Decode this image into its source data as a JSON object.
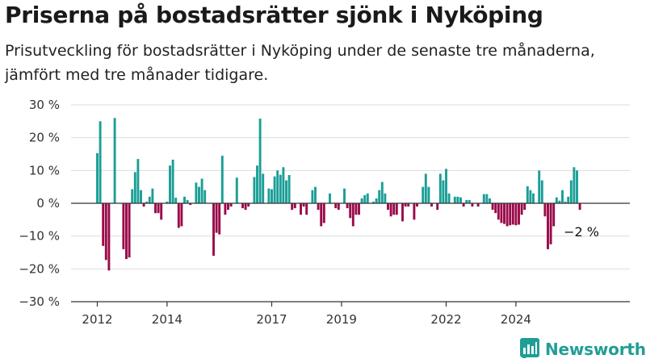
{
  "title": "Priserna på bostadsrätter sjönk i Nyköping",
  "subtitle": "Prisutveckling för bostadsrätter i Nyköping under de senaste tre månaderna, jämfört med tre månader tidigare.",
  "brand": {
    "name": "Newsworthy",
    "icon": "newsworthy-chart-logo-icon"
  },
  "colors": {
    "positive": "#1a9e96",
    "negative": "#990a4a",
    "axis": "#333333",
    "grid": "#dddddd",
    "brand": "#1f9e96"
  },
  "chart_data": {
    "type": "bar",
    "ylim": [
      -30,
      30
    ],
    "yticks": [
      30,
      20,
      10,
      0,
      -10,
      -20,
      -30
    ],
    "ytick_labels": [
      "30 %",
      "20 %",
      "10 %",
      "0 %",
      "−10 %",
      "−20 %",
      "−30 %"
    ],
    "xticks": [
      {
        "year": 2012,
        "label": "2012"
      },
      {
        "year": 2014,
        "label": "2014"
      },
      {
        "year": 2017,
        "label": "2017"
      },
      {
        "year": 2019,
        "label": "2019"
      },
      {
        "year": 2022,
        "label": "2022"
      },
      {
        "year": 2024,
        "label": "2024"
      }
    ],
    "start": "2012-01",
    "frequency": "monthly",
    "values": [
      15.3,
      25,
      -13,
      -17.3,
      -20.5,
      0,
      26,
      0,
      0,
      -14,
      -17,
      -16.5,
      4.3,
      9.5,
      13.5,
      4,
      -1,
      0.5,
      2,
      4.5,
      -3,
      -3,
      -5,
      0,
      0.5,
      11.5,
      13.3,
      1.7,
      -7.5,
      -7,
      2,
      1,
      -0.5,
      0,
      6.3,
      5,
      7.5,
      4,
      0,
      0,
      -16,
      -9,
      -9.5,
      14.5,
      -3.5,
      -2,
      -1,
      0,
      7.8,
      0,
      -1.5,
      -2,
      -1,
      0,
      8,
      11.5,
      25.8,
      9,
      0,
      4.5,
      4.3,
      8.2,
      10,
      8.7,
      11,
      7,
      8.6,
      -2,
      -1.5,
      0,
      -3.5,
      -1,
      -3.5,
      0,
      4,
      5,
      -2,
      -7,
      -6,
      0,
      3,
      0,
      -1.5,
      -2,
      0,
      4.5,
      -1.5,
      -4.5,
      -7,
      -3.5,
      -3.5,
      1.5,
      2.5,
      3,
      0,
      0.5,
      1.5,
      4,
      6.5,
      3,
      -2,
      -4,
      -3.5,
      -3.5,
      0,
      -5.5,
      -1,
      -1,
      0,
      -5,
      -1,
      0,
      5,
      9,
      5,
      -1,
      0,
      -2,
      9,
      7,
      10.5,
      3,
      0,
      2,
      2,
      1.8,
      -1,
      1,
      1,
      -1,
      0,
      -1,
      0,
      2.8,
      2.8,
      1.5,
      -2,
      -3,
      -5,
      -6,
      -6.3,
      -7,
      -6.7,
      -6.5,
      -6.7,
      -6.5,
      -3.5,
      -2,
      5.2,
      4,
      3,
      0,
      10,
      7,
      -4,
      -14,
      -12.5,
      -7,
      1.8,
      0.8,
      4,
      0.5,
      2,
      7,
      11,
      10,
      -2
    ],
    "annotation": {
      "text": "−2 %",
      "target": "last"
    }
  }
}
